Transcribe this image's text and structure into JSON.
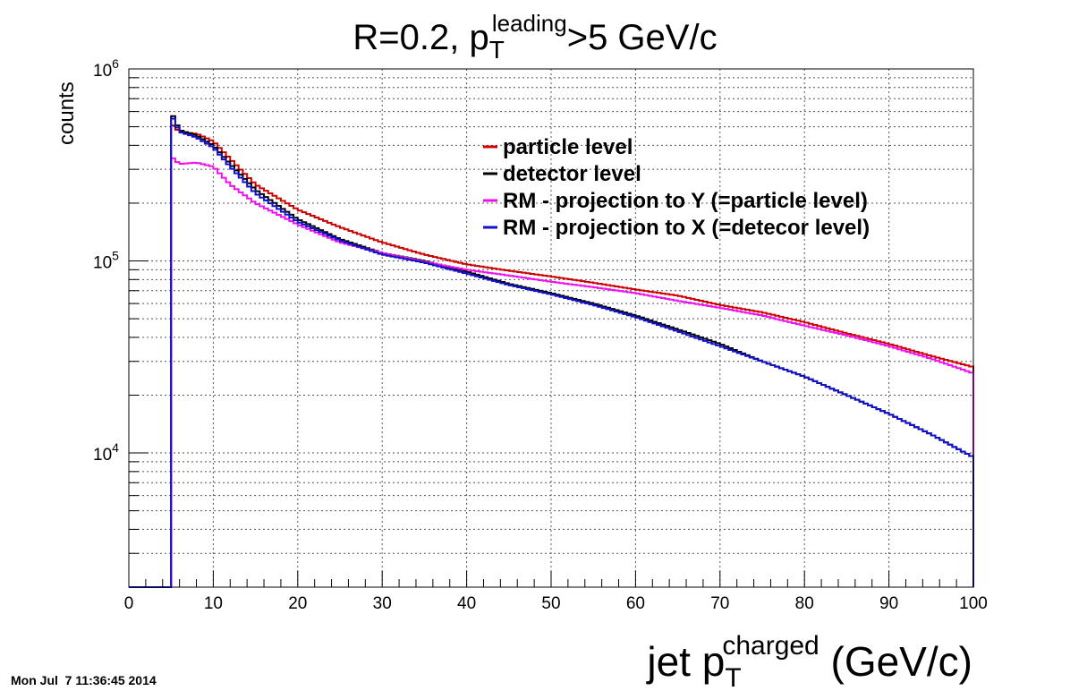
{
  "timestamp": "Mon Jul  7 11:36:45 2014",
  "chart_data": {
    "type": "line",
    "title": {
      "main": "R=0.2, p",
      "sub": "T",
      "sup": "leading",
      "suffix": ">5 GeV/c"
    },
    "xlabel": {
      "main": "jet p",
      "sub": "T",
      "sup": "charged",
      "suffix": " (GeV/c)"
    },
    "ylabel": "counts",
    "xlim": [
      0,
      100
    ],
    "ylim": [
      2000,
      1000000
    ],
    "yscale": "log",
    "grid": true,
    "legend_position": "top-right",
    "x_ticks": [
      "0",
      "10",
      "20",
      "30",
      "40",
      "50",
      "60",
      "70",
      "80",
      "90",
      "100"
    ],
    "y_ticks": [
      {
        "value": 10000,
        "base": "10",
        "exp": "4"
      },
      {
        "value": 100000,
        "base": "10",
        "exp": "5"
      },
      {
        "value": 1000000,
        "base": "10",
        "exp": "6"
      }
    ],
    "x_range_start": 5,
    "series": [
      {
        "name": "particle level",
        "color": "#cc0000",
        "x": [
          5,
          6,
          8,
          10,
          12,
          15,
          20,
          25,
          30,
          35,
          40,
          45,
          50,
          55,
          60,
          65,
          70,
          75,
          80,
          85,
          90,
          95,
          100
        ],
        "y": [
          520000,
          470000,
          460000,
          420000,
          340000,
          250000,
          185000,
          150000,
          125000,
          108000,
          96000,
          89000,
          83000,
          77000,
          71000,
          66000,
          59000,
          54000,
          48000,
          42000,
          37000,
          32000,
          28000
        ]
      },
      {
        "name": "detector level",
        "color": "#000000",
        "x": [
          5,
          6,
          8,
          10,
          12,
          15,
          20,
          25,
          30,
          35,
          40,
          45,
          50,
          55,
          60,
          65,
          70,
          75,
          80,
          85,
          90,
          95,
          100
        ],
        "y": [
          600000,
          480000,
          450000,
          400000,
          320000,
          235000,
          165000,
          130000,
          110000,
          100000,
          88000,
          76000,
          68000,
          60000,
          52000,
          44000,
          37000,
          30000,
          25000,
          20000,
          16000,
          12500,
          9500
        ]
      },
      {
        "name": "RM - projection to Y (=particle level)",
        "color": "#ee11ee",
        "x": [
          5,
          6,
          8,
          10,
          12,
          15,
          20,
          25,
          30,
          35,
          40,
          45,
          50,
          55,
          60,
          65,
          70,
          75,
          80,
          85,
          90,
          95,
          100
        ],
        "y": [
          350000,
          320000,
          325000,
          310000,
          250000,
          200000,
          155000,
          125000,
          110000,
          99000,
          90000,
          84000,
          78000,
          73000,
          68000,
          62000,
          57000,
          52000,
          46000,
          41000,
          36000,
          31000,
          26000
        ]
      },
      {
        "name": "RM - projection to X (=detecor level)",
        "color": "#1111cc",
        "x": [
          5,
          6,
          8,
          10,
          12,
          15,
          20,
          25,
          30,
          35,
          40,
          45,
          50,
          55,
          60,
          65,
          70,
          75,
          80,
          85,
          90,
          95,
          100
        ],
        "y": [
          580000,
          470000,
          440000,
          390000,
          310000,
          225000,
          160000,
          128000,
          108000,
          98000,
          86000,
          75000,
          67000,
          59000,
          51000,
          43000,
          36000,
          30000,
          25000,
          20000,
          16000,
          12500,
          9500
        ]
      }
    ]
  }
}
